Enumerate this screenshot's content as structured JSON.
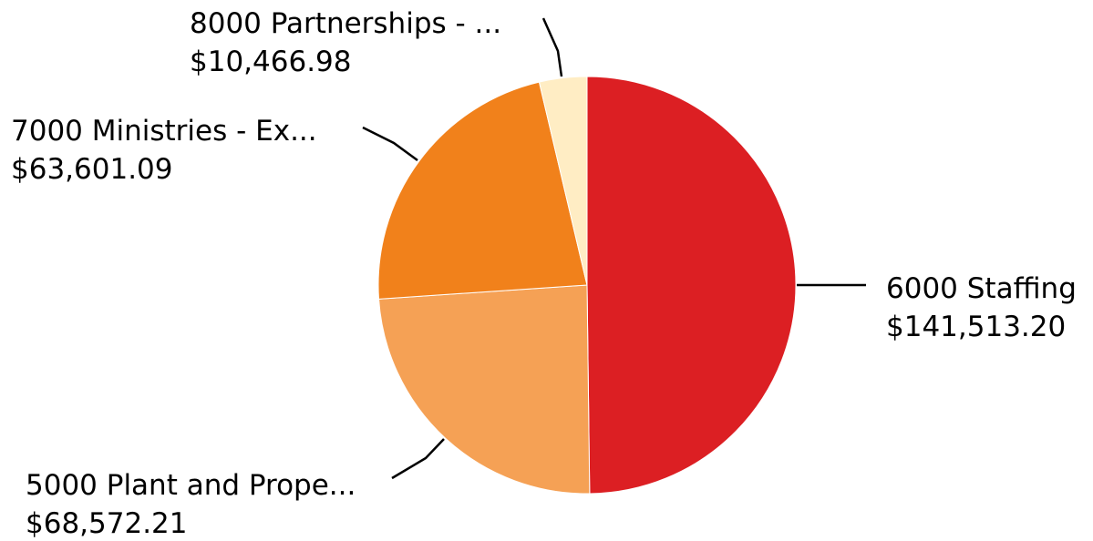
{
  "chart_data": {
    "type": "pie",
    "title": "",
    "slices": [
      {
        "label": "6000 Staffing",
        "value_text": "$141,513.20",
        "value": 141513.2,
        "color": "#dc1f23"
      },
      {
        "label": "5000 Plant and Prope...",
        "value_text": "$68,572.21",
        "value": 68572.21,
        "color": "#f5a155"
      },
      {
        "label": "7000 Ministries - Ex...",
        "value_text": "$63,601.09",
        "value": 63601.09,
        "color": "#f1811b"
      },
      {
        "label": "8000 Partnerships - ...",
        "value_text": "$10,466.98",
        "value": 10466.98,
        "color": "#ffedc4"
      }
    ],
    "start_angle": "12 o'clock",
    "direction": "clockwise",
    "legend": "none (outside leader labels)"
  }
}
